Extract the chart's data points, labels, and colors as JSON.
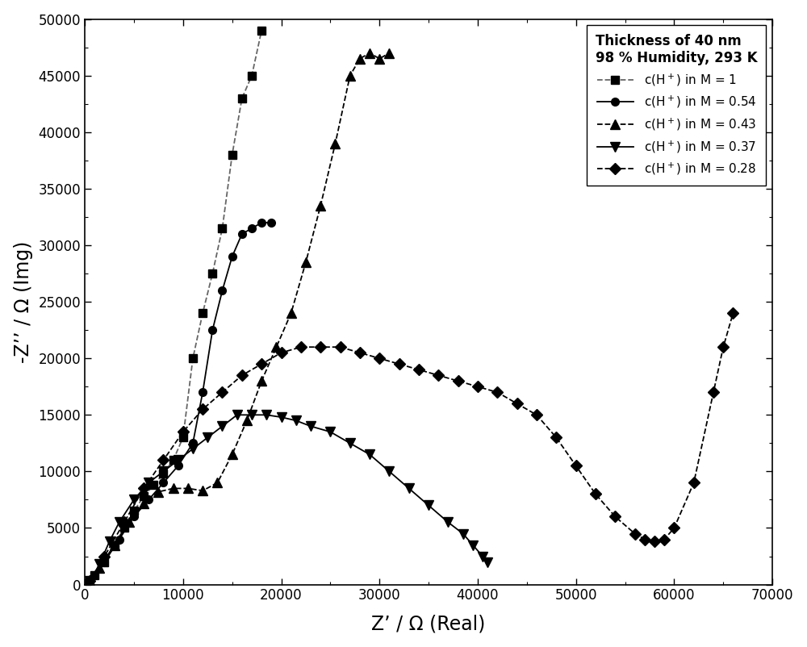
{
  "xlabel": "Z’ / Ω (Real)",
  "ylabel": "-Z’’ / Ω (Img)",
  "xlim": [
    0,
    70000
  ],
  "ylim": [
    0,
    50000
  ],
  "xticks": [
    0,
    10000,
    20000,
    30000,
    40000,
    50000,
    60000,
    70000
  ],
  "yticks": [
    0,
    5000,
    10000,
    15000,
    20000,
    25000,
    30000,
    35000,
    40000,
    45000,
    50000
  ],
  "legend_title": "Thickness of 40 nm\n98 % Humidity, 293 K",
  "series": [
    {
      "label": "c(H+) in M = 1",
      "linestyle": "--",
      "marker": "s",
      "color": "#666666",
      "x": [
        500,
        1000,
        2000,
        3000,
        4000,
        5000,
        6000,
        7000,
        8000,
        9000,
        10000,
        11000,
        12000,
        13000,
        14000,
        15000,
        16000,
        17000,
        18000
      ],
      "y": [
        300,
        800,
        2000,
        3500,
        5000,
        6500,
        7800,
        8800,
        9800,
        11000,
        13000,
        20000,
        24000,
        27500,
        31500,
        38000,
        43000,
        45000,
        49000
      ]
    },
    {
      "label": "c(H+) in M = 0.54",
      "linestyle": "-",
      "marker": "o",
      "color": "#000000",
      "x": [
        500,
        1000,
        2000,
        3500,
        5000,
        6500,
        8000,
        9500,
        11000,
        12000,
        13000,
        14000,
        15000,
        16000,
        17000,
        18000,
        19000
      ],
      "y": [
        300,
        800,
        2000,
        4000,
        6000,
        7500,
        9000,
        10500,
        12500,
        17000,
        22500,
        26000,
        29000,
        31000,
        31500,
        32000,
        32000
      ]
    },
    {
      "label": "c(H+) in M = 0.43",
      "linestyle": "--",
      "marker": "^",
      "color": "#000000",
      "x": [
        500,
        1500,
        3000,
        4500,
        6000,
        7500,
        9000,
        10500,
        12000,
        13500,
        15000,
        16500,
        18000,
        19500,
        21000,
        22500,
        24000,
        25500,
        27000,
        28000,
        29000,
        30000,
        31000
      ],
      "y": [
        300,
        1500,
        3500,
        5500,
        7200,
        8200,
        8500,
        8500,
        8300,
        9000,
        11500,
        14500,
        18000,
        21000,
        24000,
        28500,
        33500,
        39000,
        45000,
        46500,
        47000,
        46500,
        47000
      ]
    },
    {
      "label": "c(H+) in M = 0.37",
      "linestyle": "-",
      "marker": "v",
      "color": "#000000",
      "x": [
        500,
        1500,
        2500,
        3500,
        5000,
        6500,
        8000,
        9500,
        11000,
        12500,
        14000,
        15500,
        17000,
        18500,
        20000,
        21500,
        23000,
        25000,
        27000,
        29000,
        31000,
        33000,
        35000,
        37000,
        38500,
        39500,
        40500,
        41000
      ],
      "y": [
        300,
        1800,
        3800,
        5500,
        7500,
        9000,
        10000,
        11000,
        12000,
        13000,
        14000,
        15000,
        15000,
        15000,
        14800,
        14500,
        14000,
        13500,
        12500,
        11500,
        10000,
        8500,
        7000,
        5500,
        4500,
        3500,
        2500,
        2000
      ]
    },
    {
      "label": "c(H+) in M = 0.28",
      "linestyle": "--",
      "marker": "D",
      "color": "#000000",
      "x": [
        500,
        2000,
        4000,
        6000,
        8000,
        10000,
        12000,
        14000,
        16000,
        18000,
        20000,
        22000,
        24000,
        26000,
        28000,
        30000,
        32000,
        34000,
        36000,
        38000,
        40000,
        42000,
        44000,
        46000,
        48000,
        50000,
        52000,
        54000,
        56000,
        57000,
        58000,
        59000,
        60000,
        62000,
        64000,
        65000,
        66000
      ],
      "y": [
        300,
        2500,
        5500,
        8500,
        11000,
        13500,
        15500,
        17000,
        18500,
        19500,
        20500,
        21000,
        21000,
        21000,
        20500,
        20000,
        19500,
        19000,
        18500,
        18000,
        17500,
        17000,
        16000,
        15000,
        13000,
        10500,
        8000,
        6000,
        4500,
        4000,
        3800,
        4000,
        5000,
        9000,
        17000,
        21000,
        24000
      ]
    }
  ],
  "background_color": "#ffffff",
  "figure_width": 10.0,
  "figure_height": 8.02
}
